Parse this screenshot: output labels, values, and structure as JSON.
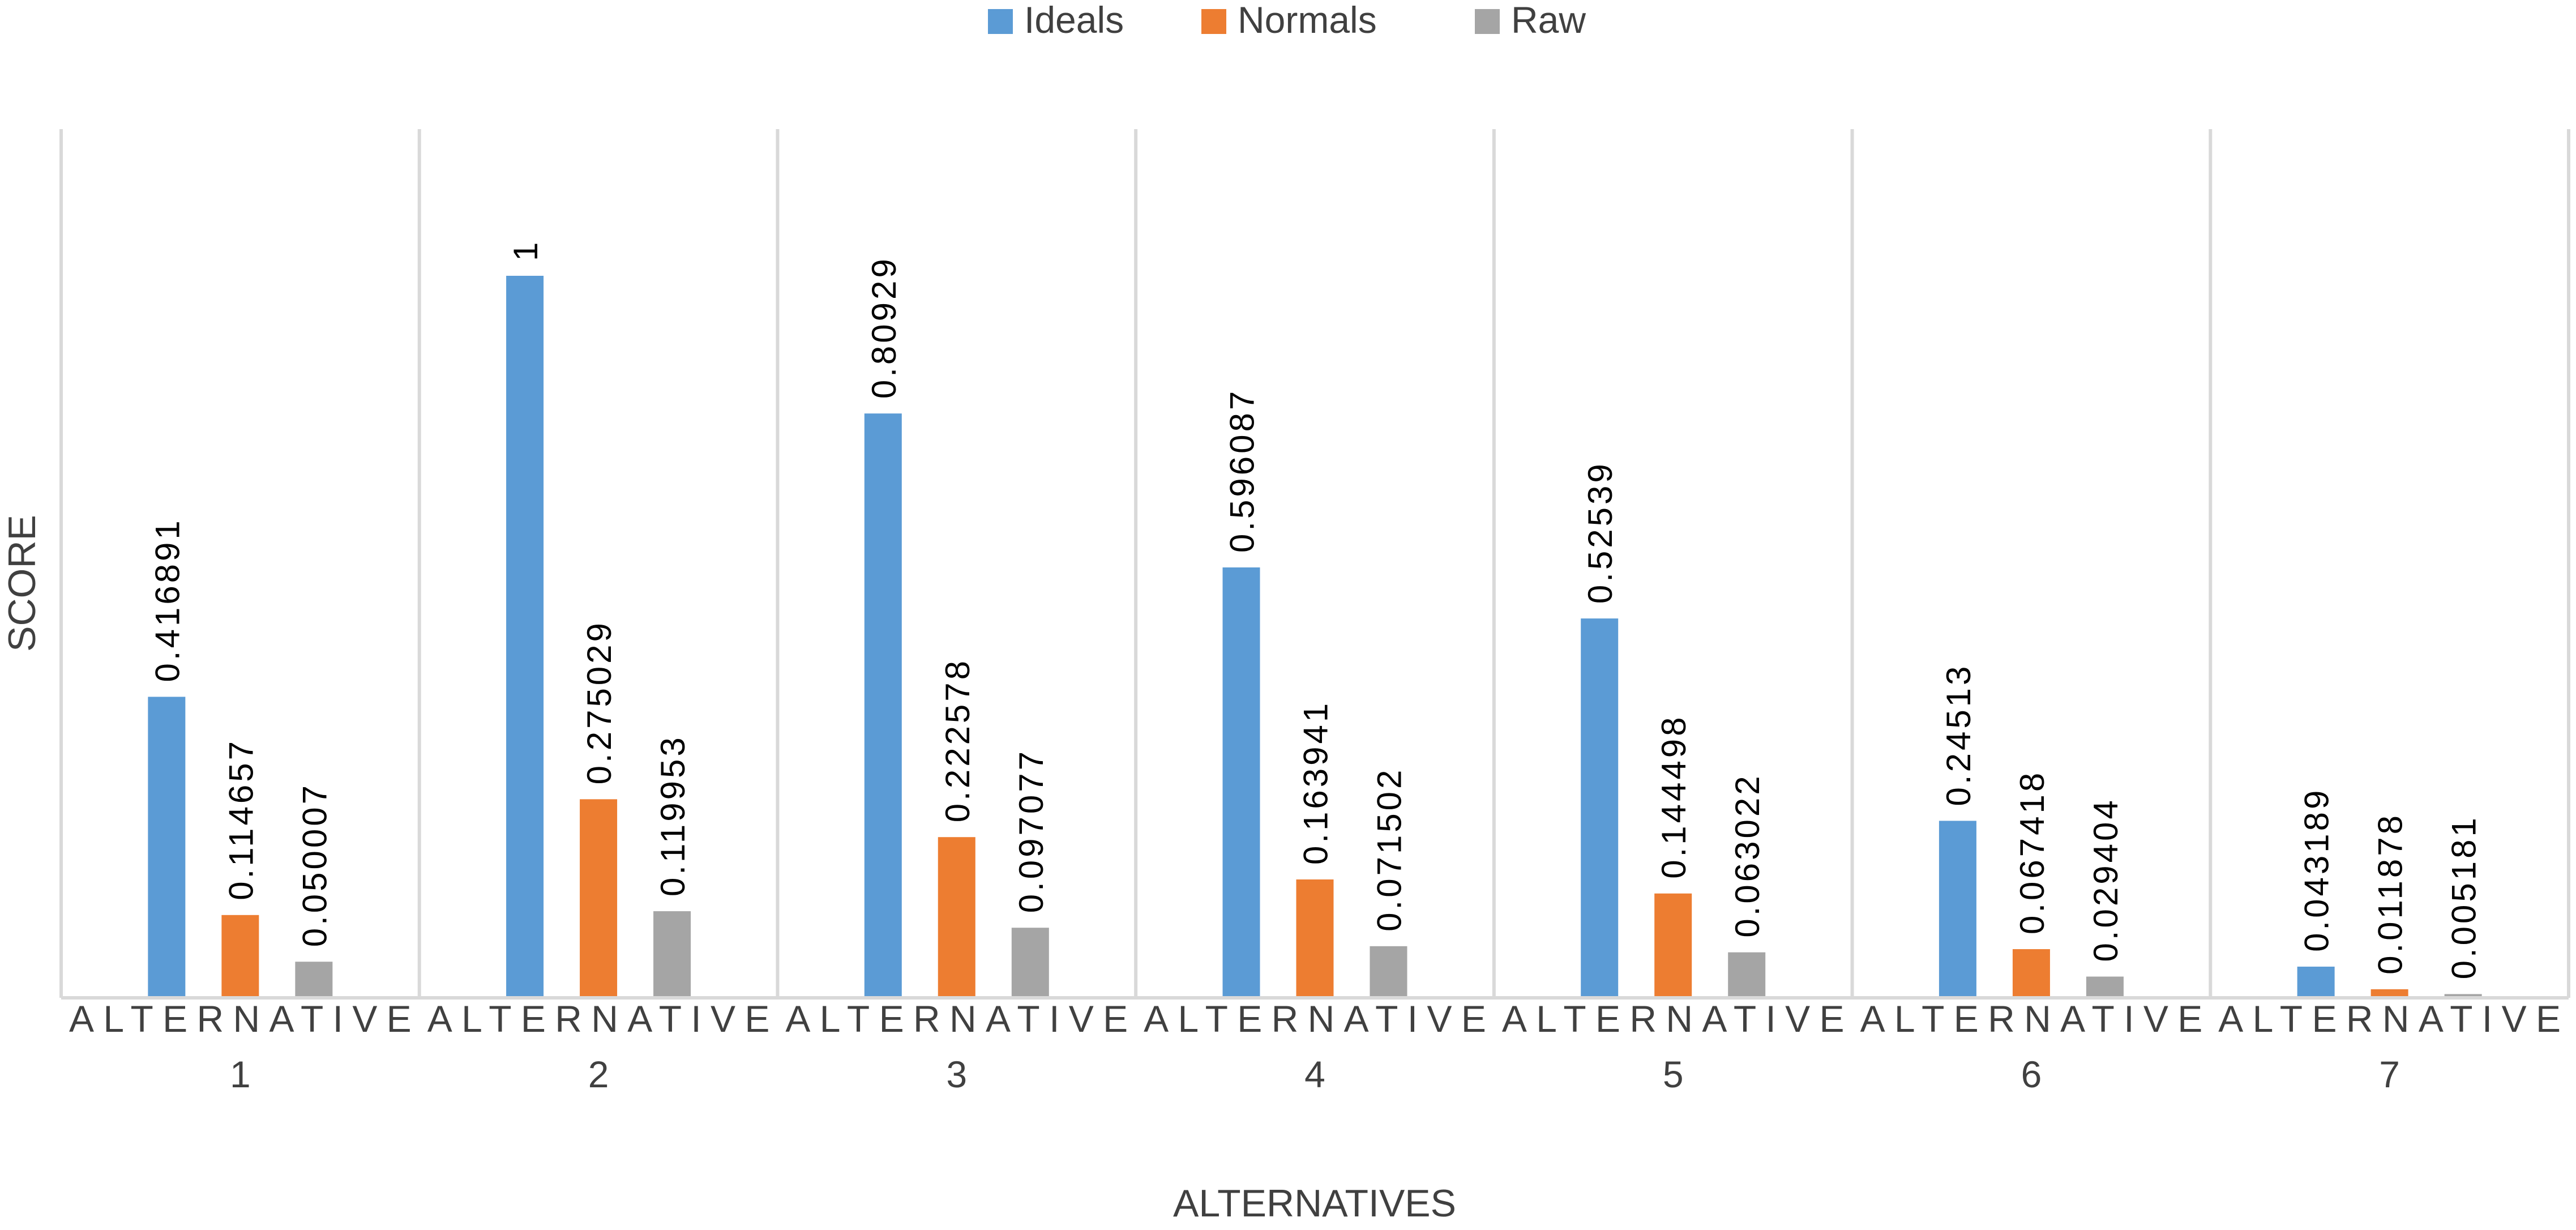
{
  "chart_data": {
    "type": "bar",
    "title": "",
    "xlabel": "ALTERNATIVES",
    "ylabel": "SCORE",
    "categories": [
      {
        "label": "ALTERNATIVE",
        "number": "1"
      },
      {
        "label": "ALTERNATIVE",
        "number": "2"
      },
      {
        "label": "ALTERNATIVE",
        "number": "3"
      },
      {
        "label": "ALTERNATIVE",
        "number": "4"
      },
      {
        "label": "ALTERNATIVE",
        "number": "5"
      },
      {
        "label": "ALTERNATIVE",
        "number": "6"
      },
      {
        "label": "ALTERNATIVE",
        "number": "7"
      }
    ],
    "series": [
      {
        "name": "Ideals",
        "color": "#5b9bd5",
        "values": [
          0.416891,
          1,
          0.80929,
          0.596087,
          0.52539,
          0.24513,
          0.043189
        ],
        "labels": [
          "0.416891",
          "1",
          "0.80929",
          "0.596087",
          "0.52539",
          "0.24513",
          "0.043189"
        ]
      },
      {
        "name": "Normals",
        "color": "#ed7d31",
        "values": [
          0.114657,
          0.275029,
          0.222578,
          0.163941,
          0.144498,
          0.067418,
          0.011878
        ],
        "labels": [
          "0.114657",
          "0.275029",
          "0.222578",
          "0.163941",
          "0.144498",
          "0.067418",
          "0.011878"
        ]
      },
      {
        "name": "Raw",
        "color": "#a5a5a5",
        "values": [
          0.050007,
          0.119953,
          0.097077,
          0.071502,
          0.063022,
          0.029404,
          0.005181
        ],
        "labels": [
          "0.050007",
          "0.119953",
          "0.097077",
          "0.071502",
          "0.063022",
          "0.029404",
          "0.005181"
        ]
      }
    ],
    "ylim": [
      0,
      1.2
    ],
    "grid": false,
    "category_separators": true,
    "legend": "top-center"
  }
}
